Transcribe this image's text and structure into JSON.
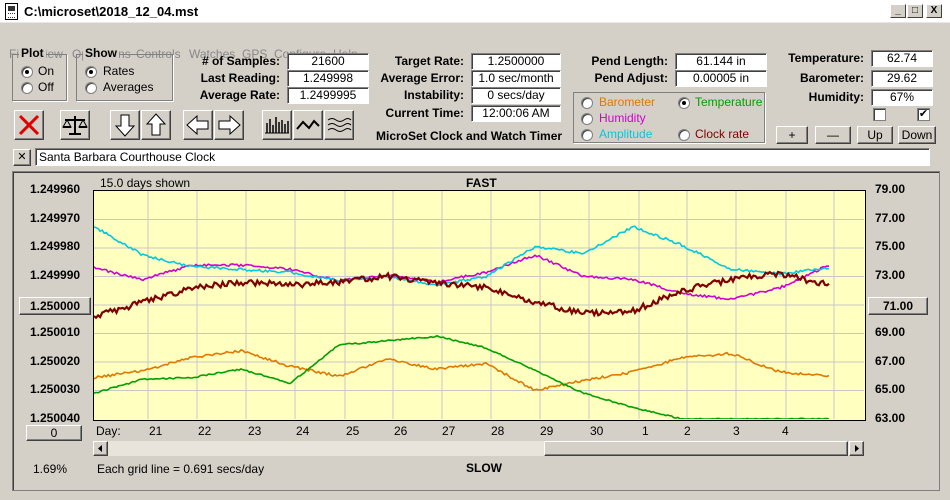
{
  "window": {
    "title": "C:\\microset\\2018_12_04.mst",
    "min": "_",
    "max": "□",
    "close": "X"
  },
  "menu": [
    "File",
    "View",
    "Operations",
    "Controls",
    "Watches",
    "GPS",
    "Configure",
    "Help"
  ],
  "plot_group": {
    "title": "Plot",
    "on": "On",
    "off": "Off",
    "selected": "On"
  },
  "show_group": {
    "title": "Show",
    "rates": "Rates",
    "averages": "Averages",
    "selected": "Rates"
  },
  "stats": {
    "samples_label": "# of Samples:",
    "samples": "21600",
    "last_reading_label": "Last Reading:",
    "last_reading": "1.249998",
    "average_rate_label": "Average Rate:",
    "average_rate": "1.2499995",
    "target_rate_label": "Target Rate:",
    "target_rate": "1.2500000",
    "average_error_label": "Average Error:",
    "average_error": "1.0 sec/month",
    "instability_label": "Instability:",
    "instability": "0 secs/day",
    "current_time_label": "Current Time:",
    "current_time": "12:00:06 AM",
    "pend_length_label": "Pend Length:",
    "pend_length": "61.144 in",
    "pend_adjust_label": "Pend Adjust:",
    "pend_adjust": "0.00005 in",
    "temperature_label": "Temperature:",
    "temperature": "62.74",
    "barometer_label": "Barometer:",
    "barometer": "29.62",
    "humidity_label": "Humidity:",
    "humidity": "67%"
  },
  "app_caption": "MicroSet Clock and Watch Timer",
  "sensor_select": {
    "barometer": "Barometer",
    "temperature": "Temperature",
    "humidity": "Humidity",
    "amplitude": "Amplitude",
    "clock_rate": "Clock rate",
    "selected": "Temperature",
    "colors": {
      "barometer": "#e07800",
      "temperature": "#00a000",
      "humidity": "#d000d0",
      "amplitude": "#00c8e0",
      "clock_rate": "#800000"
    }
  },
  "adjust_buttons": {
    "plus": "+",
    "minus": "—",
    "up": "Up",
    "down": "Down"
  },
  "checkboxes": [
    {
      "checked": false,
      "mark": ""
    },
    {
      "checked": true,
      "mark": "✔"
    }
  ],
  "watch_name": "Santa Barbara Courthouse Clock",
  "watch_close": "✕",
  "plot": {
    "days_shown": "15.0 days shown",
    "top_label": "FAST",
    "bottom_label": "SLOW",
    "grid_note": "Each grid line = 0.691 secs/day",
    "percent": "1.69%",
    "day_label": "Day:",
    "left_axis": [
      "1.249960",
      "1.249970",
      "1.249980",
      "1.249990",
      "1.250000",
      "1.250010",
      "1.250020",
      "1.250030",
      "1.250040"
    ],
    "right_axis": [
      "79.00",
      "77.00",
      "75.00",
      "73.00",
      "71.00",
      "69.00",
      "67.00",
      "65.00",
      "63.00"
    ],
    "left_center_btn": "1.250000",
    "right_center_btn": "71.00",
    "bottom_left_btn": "0",
    "days": [
      "21",
      "22",
      "23",
      "24",
      "25",
      "26",
      "27",
      "28",
      "29",
      "30",
      "1",
      "2",
      "3",
      "4"
    ]
  },
  "chart_data": {
    "type": "line",
    "title": "",
    "xlabel": "Day",
    "ylabel": "",
    "x_days": [
      "20.5",
      "21",
      "22",
      "23",
      "24",
      "25",
      "26",
      "27",
      "28",
      "29",
      "30",
      "1",
      "2",
      "3",
      "4",
      "4.8"
    ],
    "ylim_left": [
      1.25004,
      1.24996
    ],
    "ylim_right": [
      63,
      79
    ],
    "series": [
      {
        "name": "Clock rate",
        "axis": "left",
        "color": "#800000",
        "values": [
          1.250004,
          1.249999,
          1.249994,
          1.249992,
          1.249993,
          1.249992,
          1.24999,
          1.249992,
          1.249994,
          1.249999,
          1.250003,
          1.250002,
          1.249995,
          1.249991,
          1.249989,
          1.249993
        ]
      },
      {
        "name": "Barometer",
        "axis": "right",
        "color": "#e07800",
        "values": [
          65.9,
          66.4,
          67.3,
          67.8,
          66.7,
          66.0,
          67.2,
          66.5,
          66.9,
          65.0,
          65.7,
          66.3,
          67.3,
          67.6,
          66.3,
          66.0
        ]
      },
      {
        "name": "Humidity",
        "axis": "right",
        "color": "#d000d0",
        "values": [
          73.6,
          72.8,
          73.8,
          73.8,
          73.5,
          72.7,
          73.1,
          72.6,
          73.3,
          74.5,
          73.0,
          72.8,
          71.8,
          71.4,
          72.2,
          73.8
        ]
      },
      {
        "name": "Amplitude",
        "axis": "right",
        "color": "#00c8e0",
        "values": [
          76.5,
          74.5,
          73.7,
          73.5,
          73.3,
          72.7,
          73.0,
          72.4,
          73.0,
          75.1,
          74.6,
          76.5,
          75.2,
          73.5,
          73.2,
          73.6
        ]
      },
      {
        "name": "Temperature",
        "axis": "right",
        "color": "#00a000",
        "values": [
          64.8,
          65.8,
          65.9,
          66.5,
          65.5,
          68.2,
          68.5,
          68.8,
          68.0,
          66.4,
          64.8,
          63.8,
          63.0,
          63.0,
          63.0,
          63.0
        ]
      }
    ]
  }
}
